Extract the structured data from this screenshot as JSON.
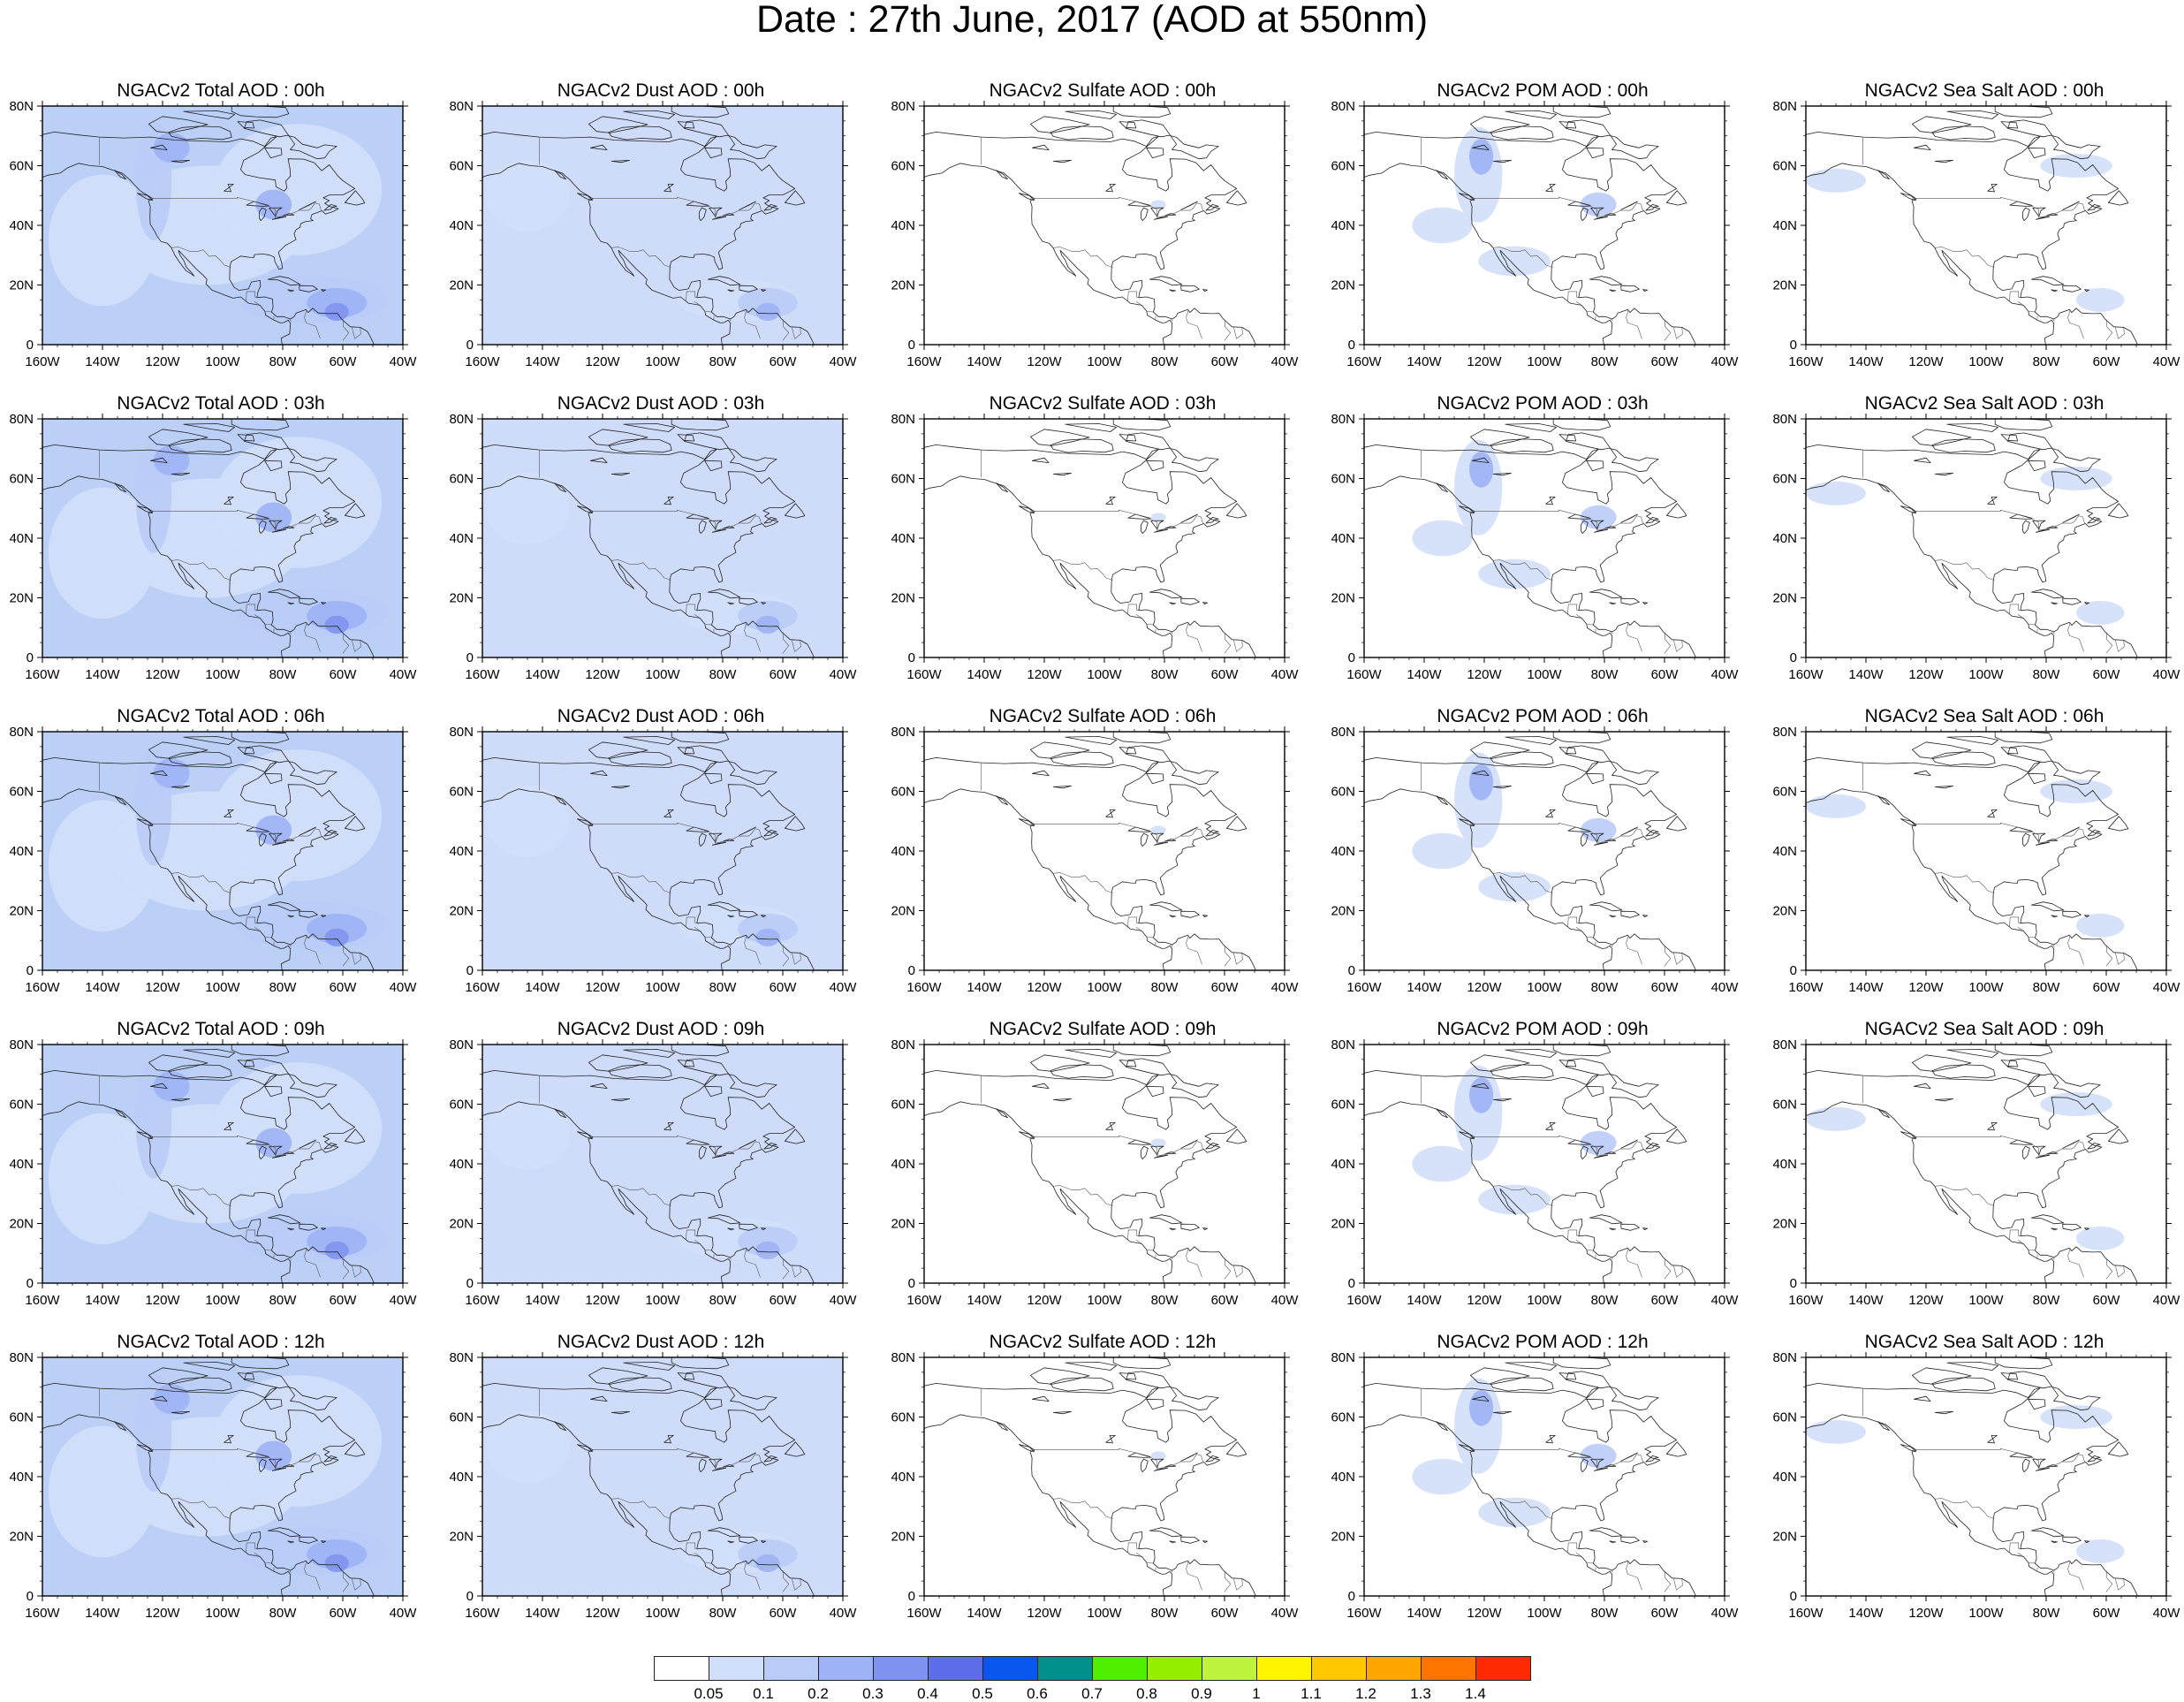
{
  "title": "Date : 27th June, 2017 (AOD at 550nm)",
  "map_extent": {
    "lon_min": -160,
    "lon_max": -40,
    "lat_min": 0,
    "lat_max": 80
  },
  "lon_ticks": [
    "160W",
    "140W",
    "120W",
    "100W",
    "80W",
    "60W",
    "40W"
  ],
  "lat_ticks": [
    "0",
    "20N",
    "40N",
    "60N",
    "80N"
  ],
  "fill_levels": {
    "total": "#bcd0f7",
    "dust": "#cfdcf9",
    "sulfate": "#ffffff",
    "pom": "#ffffff",
    "seasalt": "#ffffff"
  },
  "panels": [
    [
      {
        "title": "NGACv2 Total AOD : 00h",
        "species": "total"
      },
      {
        "title": "NGACv2 Dust AOD : 00h",
        "species": "dust"
      },
      {
        "title": "NGACv2 Sulfate AOD : 00h",
        "species": "sulfate"
      },
      {
        "title": "NGACv2 POM AOD : 00h",
        "species": "pom"
      },
      {
        "title": "NGACv2 Sea Salt AOD : 00h",
        "species": "seasalt"
      }
    ],
    [
      {
        "title": "NGACv2 Total AOD : 03h",
        "species": "total"
      },
      {
        "title": "NGACv2 Dust AOD : 03h",
        "species": "dust"
      },
      {
        "title": "NGACv2 Sulfate AOD : 03h",
        "species": "sulfate"
      },
      {
        "title": "NGACv2 POM AOD : 03h",
        "species": "pom"
      },
      {
        "title": "NGACv2 Sea Salt AOD : 03h",
        "species": "seasalt"
      }
    ],
    [
      {
        "title": "NGACv2 Total AOD : 06h",
        "species": "total"
      },
      {
        "title": "NGACv2 Dust AOD : 06h",
        "species": "dust"
      },
      {
        "title": "NGACv2 Sulfate AOD : 06h",
        "species": "sulfate"
      },
      {
        "title": "NGACv2 POM AOD : 06h",
        "species": "pom"
      },
      {
        "title": "NGACv2 Sea Salt AOD : 06h",
        "species": "seasalt"
      }
    ],
    [
      {
        "title": "NGACv2 Total AOD : 09h",
        "species": "total"
      },
      {
        "title": "NGACv2 Dust AOD : 09h",
        "species": "dust"
      },
      {
        "title": "NGACv2 Sulfate AOD : 09h",
        "species": "sulfate"
      },
      {
        "title": "NGACv2 POM AOD : 09h",
        "species": "pom"
      },
      {
        "title": "NGACv2 Sea Salt  AOD : 09h",
        "species": "seasalt"
      }
    ],
    [
      {
        "title": "NGACv2 Total AOD  : 12h",
        "species": "total"
      },
      {
        "title": "NGACv2 Dust AOD : 12h",
        "species": "dust"
      },
      {
        "title": "NGACv2 Sulfate AOD : 12h",
        "species": "sulfate"
      },
      {
        "title": "NGACv2 POM  AOD : 12h",
        "species": "pom"
      },
      {
        "title": "NGACv2 Sea Salt  AOD : 12h",
        "species": "seasalt"
      }
    ]
  ],
  "colorbar": {
    "colors": [
      "#ffffff",
      "#d2dffa",
      "#b9cbf7",
      "#9db3f5",
      "#7f94f0",
      "#5e6ee8",
      "#0a57f0",
      "#00908c",
      "#4ef000",
      "#94f000",
      "#bff43c",
      "#fff500",
      "#ffc800",
      "#ffa500",
      "#ff7300",
      "#ff2a00"
    ],
    "labels": [
      "0.05",
      "0.1",
      "0.2",
      "0.3",
      "0.4",
      "0.5",
      "0.6",
      "0.7",
      "0.8",
      "0.9",
      "1",
      "1.1",
      "1.2",
      "1.3",
      "1.4"
    ]
  }
}
